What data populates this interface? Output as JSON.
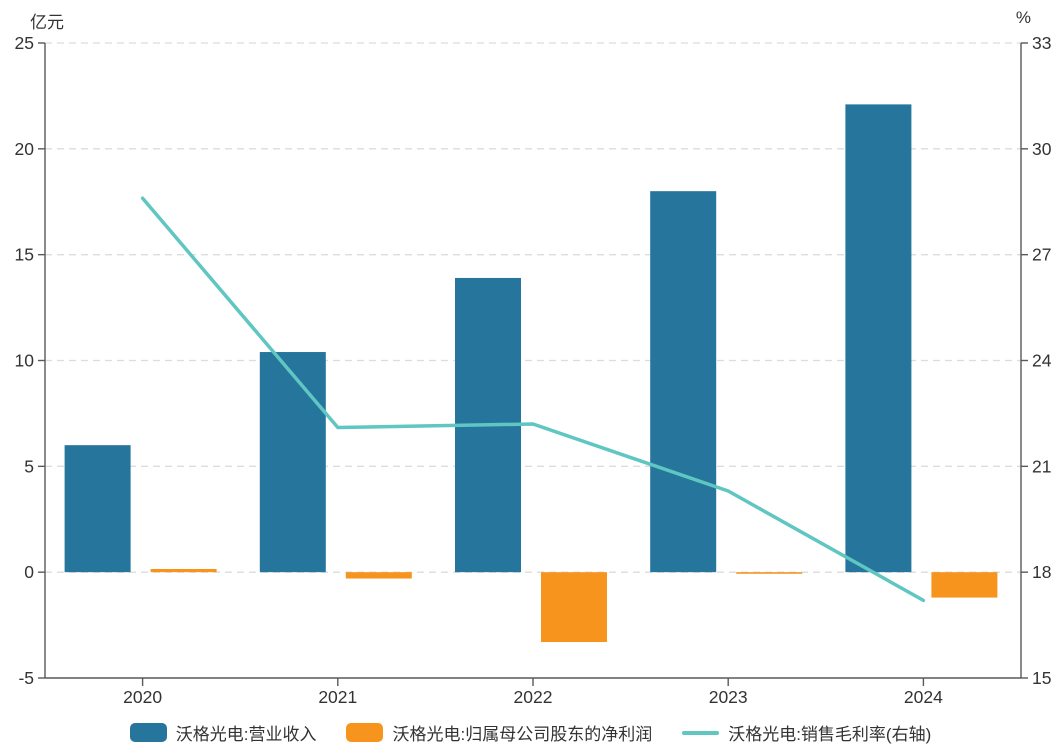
{
  "chart_data": {
    "type": "bar+line",
    "categories": [
      "2020",
      "2021",
      "2022",
      "2023",
      "2024"
    ],
    "series": [
      {
        "name": "沃格光电:营业收入",
        "type": "bar",
        "axis": "left",
        "color": "#26759C",
        "values": [
          6.0,
          10.4,
          13.9,
          18.0,
          22.1
        ]
      },
      {
        "name": "沃格光电:归属母公司股东的净利润",
        "type": "bar",
        "axis": "left",
        "color": "#F7941E",
        "values": [
          0.15,
          -0.3,
          -3.3,
          -0.05,
          -1.2
        ]
      },
      {
        "name": "沃格光电:销售毛利率(右轴)",
        "type": "line",
        "axis": "right",
        "color": "#5FC6C2",
        "values": [
          28.6,
          22.1,
          22.2,
          20.3,
          17.2
        ]
      }
    ],
    "left_axis": {
      "unit": "亿元",
      "ticks": [
        25,
        20,
        15,
        10,
        5,
        0,
        -5
      ],
      "range": [
        -5,
        25
      ]
    },
    "right_axis": {
      "unit": "%",
      "ticks": [
        33,
        30,
        27,
        24,
        21,
        18,
        15
      ],
      "range": [
        15,
        33
      ]
    },
    "grid": true,
    "legend_position": "bottom",
    "colors": {
      "grid": "#dcdcdc",
      "axis": "#595959",
      "text": "#333333",
      "background": "#ffffff"
    }
  }
}
